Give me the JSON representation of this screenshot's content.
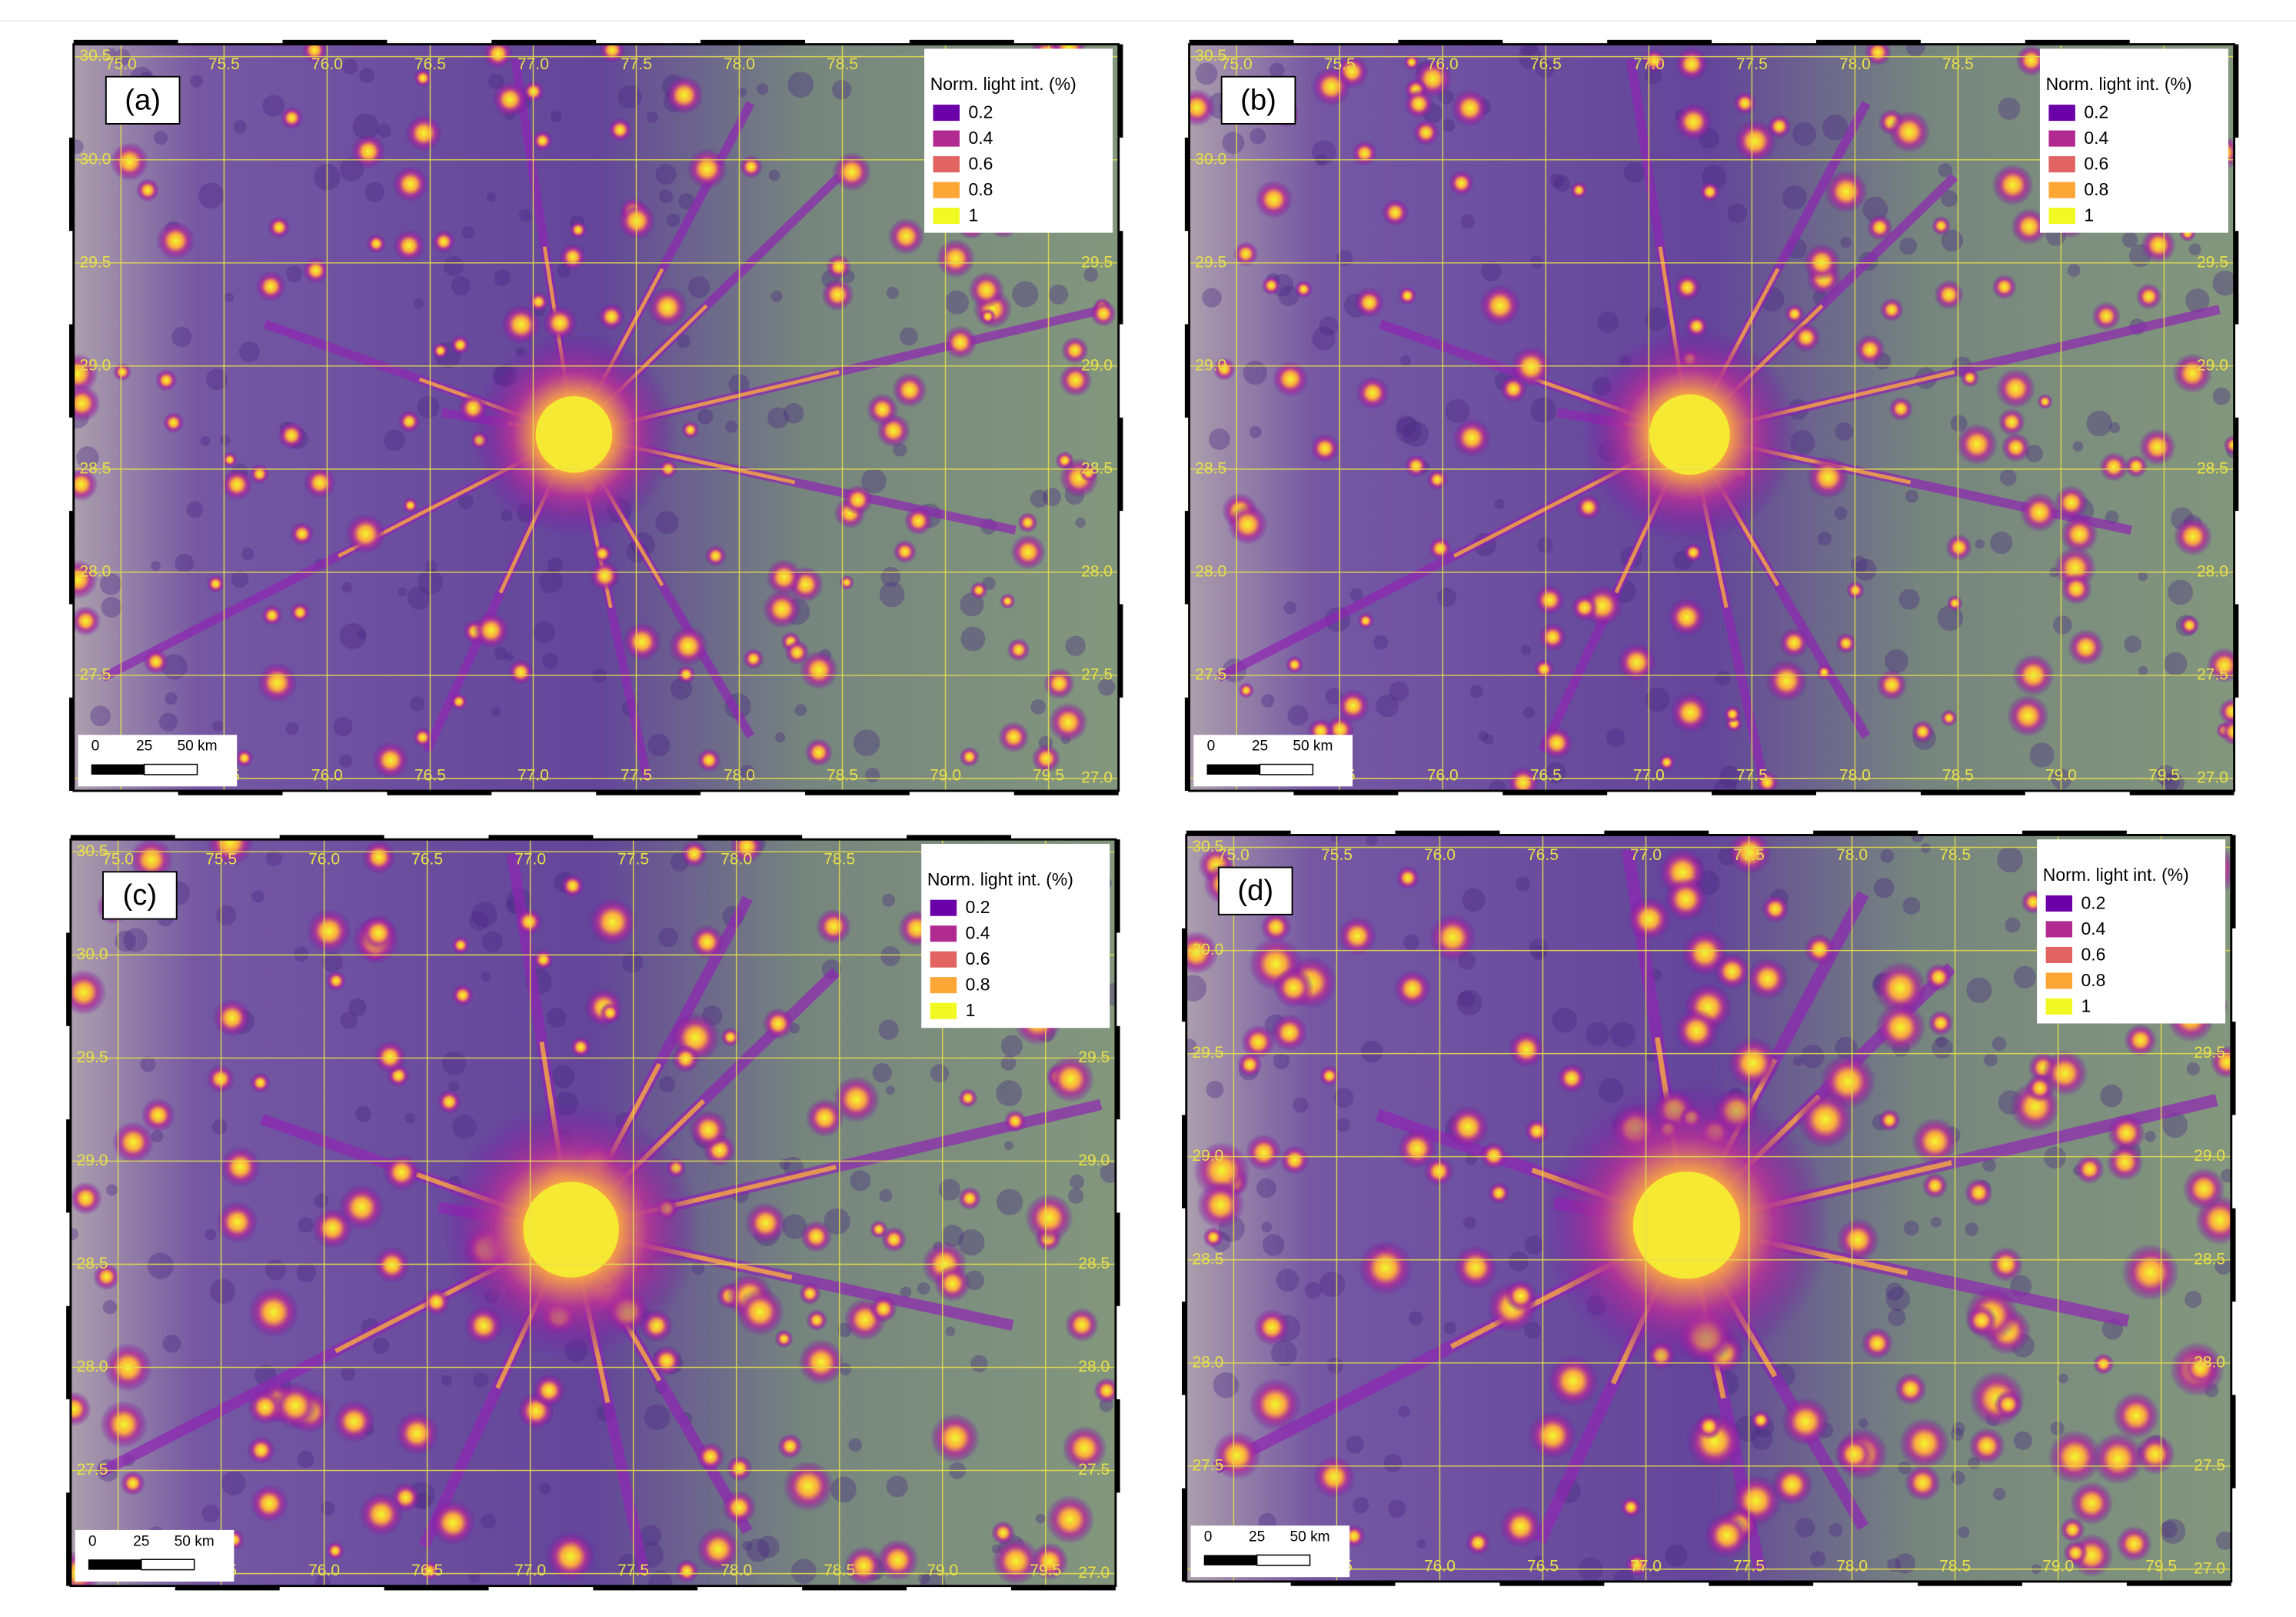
{
  "panels": [
    {
      "label": "(a)"
    },
    {
      "label": "(b)"
    },
    {
      "label": "(c)"
    },
    {
      "label": "(d)"
    }
  ],
  "legend": {
    "title": "Norm. light int. (%)",
    "items": [
      {
        "value": 0.2,
        "color": "#6a00a8"
      },
      {
        "value": 0.4,
        "color": "#b12a90"
      },
      {
        "value": 0.6,
        "color": "#e16462"
      },
      {
        "value": 0.8,
        "color": "#fca636"
      },
      {
        "value": 1,
        "color": "#f0f921"
      }
    ]
  },
  "xlim": [
    74.77,
    79.84
  ],
  "ylim": [
    26.94,
    30.56
  ],
  "lon_ticks": [
    {
      "value": 75,
      "label": "75.0"
    },
    75.5,
    {
      "value": 76,
      "label": "76.0"
    },
    76.5,
    {
      "value": 77,
      "label": "77.0"
    },
    77.5,
    {
      "value": 78,
      "label": "78.0"
    },
    78.5,
    {
      "value": 79,
      "label": "79.0"
    },
    79.5
  ],
  "lat_ticks": [
    30.5,
    {
      "value": 30,
      "label": "30.0"
    },
    29.5,
    {
      "value": 29,
      "label": "29.0"
    },
    28.5,
    {
      "value": 28,
      "label": "28.0"
    },
    27.5,
    {
      "value": 27,
      "label": "27.0"
    }
  ],
  "scale_bar": {
    "labels": [
      "0",
      "25",
      "50 km"
    ]
  }
}
